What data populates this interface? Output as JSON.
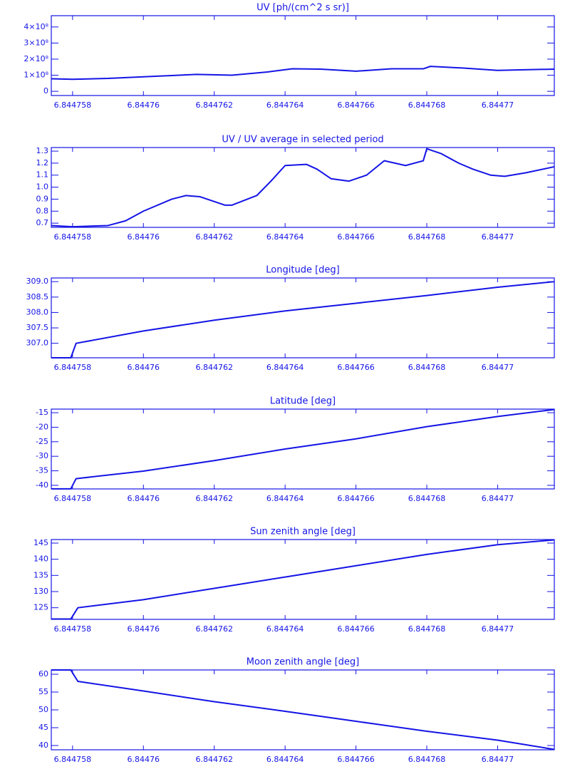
{
  "chart_data": [
    {
      "type": "line",
      "title": "UV [ph/(cm^2 s sr)]",
      "color": "#1414e6",
      "x": [
        6.8447574,
        6.844758,
        6.844759,
        6.84476,
        6.8447615,
        6.8447625,
        6.8447635,
        6.8447642,
        6.844765,
        6.844766,
        6.844767,
        6.8447679,
        6.8447681,
        6.844769,
        6.84477,
        6.8447716
      ],
      "values": [
        78000000,
        75000000,
        80000000,
        90000000,
        105000000,
        100000000,
        120000000,
        140000000,
        138000000,
        125000000,
        140000000,
        140000000,
        155000000,
        145000000,
        130000000,
        138000000
      ],
      "xlim": [
        6.8447574,
        6.8447716
      ],
      "ylim": [
        -26000000,
        470000000
      ],
      "xticks": [
        6.844758,
        6.84476,
        6.844762,
        6.844764,
        6.844766,
        6.844768,
        6.84477
      ],
      "yticks": [
        0,
        {
          "value": 100000000,
          "label": "1×10⁸"
        },
        {
          "value": 200000000,
          "label": "2×10⁸"
        },
        {
          "value": 300000000,
          "label": "3×10⁸"
        },
        {
          "value": 400000000,
          "label": "4×10⁸"
        }
      ]
    },
    {
      "type": "line",
      "title": "UV / UV average in selected period",
      "color": "#1414e6",
      "x": [
        6.8447574,
        6.844758,
        6.844759,
        6.8447595,
        6.84476,
        6.8447608,
        6.8447612,
        6.8447616,
        6.8447623,
        6.8447625,
        6.8447632,
        6.8447636,
        6.844764,
        6.8447646,
        6.8447649,
        6.8447653,
        6.8447658,
        6.8447663,
        6.8447668,
        6.8447674,
        6.8447679,
        6.844768,
        6.8447684,
        6.8447689,
        6.8447693,
        6.8447698,
        6.8447702,
        6.8447708,
        6.8447716
      ],
      "values": [
        0.68,
        0.67,
        0.68,
        0.72,
        0.8,
        0.9,
        0.93,
        0.92,
        0.85,
        0.85,
        0.93,
        1.05,
        1.18,
        1.19,
        1.15,
        1.07,
        1.05,
        1.1,
        1.22,
        1.18,
        1.22,
        1.32,
        1.28,
        1.2,
        1.15,
        1.1,
        1.09,
        1.12,
        1.17
      ],
      "xlim": [
        6.8447574,
        6.8447716
      ],
      "ylim": [
        0.665,
        1.33
      ],
      "xticks": [
        6.844758,
        6.84476,
        6.844762,
        6.844764,
        6.844766,
        6.844768,
        6.84477
      ],
      "yticks": [
        0.7,
        0.8,
        0.9,
        {
          "value": 1,
          "label": "1.0"
        },
        1.1,
        1.2,
        1.3
      ]
    },
    {
      "type": "line",
      "title": "Longitude [deg]",
      "color": "#1414e6",
      "x": [
        6.8447574,
        6.84475795,
        6.8447581,
        6.84476,
        6.844762,
        6.844764,
        6.844766,
        6.844768,
        6.84477,
        6.8447716
      ],
      "values": [
        306.53,
        306.53,
        307.0,
        307.4,
        307.75,
        308.05,
        308.3,
        308.55,
        308.82,
        309.0
      ],
      "xlim": [
        6.8447574,
        6.8447716
      ],
      "ylim": [
        306.53,
        309.12
      ],
      "xticks": [
        6.844758,
        6.84476,
        6.844762,
        6.844764,
        6.844766,
        6.844768,
        6.84477
      ],
      "yticks": [
        {
          "value": 307,
          "label": "307.0"
        },
        307.5,
        {
          "value": 308,
          "label": "308.0"
        },
        308.5,
        {
          "value": 309,
          "label": "309.0"
        }
      ]
    },
    {
      "type": "line",
      "title": "Latitude [deg]",
      "color": "#1414e6",
      "x": [
        6.8447574,
        6.84475795,
        6.8447581,
        6.84476,
        6.844762,
        6.844764,
        6.844766,
        6.844768,
        6.84477,
        6.8447716
      ],
      "values": [
        -41.2,
        -41.2,
        -37.7,
        -35.1,
        -31.5,
        -27.5,
        -24,
        -19.8,
        -16.3,
        -13.9
      ],
      "xlim": [
        6.8447574,
        6.8447716
      ],
      "ylim": [
        -41.24,
        -13.76
      ],
      "xticks": [
        6.844758,
        6.84476,
        6.844762,
        6.844764,
        6.844766,
        6.844768,
        6.84477
      ],
      "yticks": [
        -40,
        -35,
        -30,
        -25,
        -20,
        -15
      ]
    },
    {
      "type": "line",
      "title": "Sun zenith angle [deg]",
      "color": "#1414e6",
      "x": [
        6.8447574,
        6.84475795,
        6.84475815,
        6.84476,
        6.844762,
        6.844764,
        6.844766,
        6.844768,
        6.84477,
        6.8447716
      ],
      "values": [
        121.5,
        121.5,
        125,
        127.5,
        131,
        134.5,
        138,
        141.5,
        144.5,
        146
      ],
      "xlim": [
        6.8447574,
        6.8447716
      ],
      "ylim": [
        121.4,
        146.1
      ],
      "xticks": [
        6.844758,
        6.84476,
        6.844762,
        6.844764,
        6.844766,
        6.844768,
        6.84477
      ],
      "yticks": [
        125,
        130,
        135,
        140,
        145
      ]
    },
    {
      "type": "line",
      "title": "Moon zenith angle [deg]",
      "color": "#1414e6",
      "x": [
        6.8447574,
        6.84475795,
        6.84475815,
        6.84476,
        6.844762,
        6.844764,
        6.844766,
        6.844768,
        6.84477,
        6.8447716
      ],
      "values": [
        61.2,
        61.2,
        58,
        55.3,
        52.3,
        49.6,
        46.8,
        44,
        41.5,
        38.9
      ],
      "xlim": [
        6.8447574,
        6.8447716
      ],
      "ylim": [
        38.8,
        61.2
      ],
      "xticks": [
        6.844758,
        6.84476,
        6.844762,
        6.844764,
        6.844766,
        6.844768,
        6.84477
      ],
      "yticks": [
        40,
        45,
        50,
        55,
        60
      ]
    }
  ]
}
